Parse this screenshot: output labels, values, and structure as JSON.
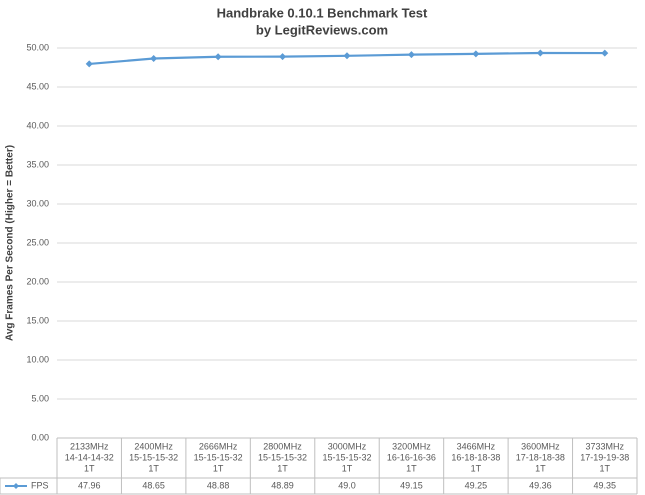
{
  "chart_data": {
    "type": "line",
    "title": "Handbrake 0.10.1 Benchmark Test",
    "subtitle": "by LegitReviews.com",
    "y_label": "Avg Frames Per Second (Higher = Better)",
    "categories": [
      [
        "2133MHz",
        "14-14-14-32",
        "1T"
      ],
      [
        "2400MHz",
        "15-15-15-32",
        "1T"
      ],
      [
        "2666MHz",
        "15-15-15-32",
        "1T"
      ],
      [
        "2800MHz",
        "15-15-15-32",
        "1T"
      ],
      [
        "3000MHz",
        "15-15-15-32",
        "1T"
      ],
      [
        "3200MHz",
        "16-16-16-36",
        "1T"
      ],
      [
        "3466MHz",
        "16-18-18-38",
        "1T"
      ],
      [
        "3600MHz",
        "17-18-18-38",
        "1T"
      ],
      [
        "3733MHz",
        "17-19-19-38",
        "1T"
      ]
    ],
    "series": [
      {
        "name": "FPS",
        "color": "#5b9bd5",
        "values": [
          47.96,
          48.65,
          48.88,
          48.89,
          49.0,
          49.15,
          49.25,
          49.36,
          49.35
        ],
        "value_labels": [
          "47.96",
          "48.65",
          "48.88",
          "48.89",
          "49.0",
          "49.15",
          "49.25",
          "49.36",
          "49.35"
        ]
      }
    ],
    "ylim": [
      0,
      50
    ],
    "yticks": [
      {
        "value": 0,
        "label": "0.00"
      },
      {
        "value": 5,
        "label": "5.00"
      },
      {
        "value": 10,
        "label": "10.00"
      },
      {
        "value": 15,
        "label": "15.00"
      },
      {
        "value": 20,
        "label": "20.00"
      },
      {
        "value": 25,
        "label": "25.00"
      },
      {
        "value": 30,
        "label": "30.00"
      },
      {
        "value": 35,
        "label": "35.00"
      },
      {
        "value": 40,
        "label": "40.00"
      },
      {
        "value": 45,
        "label": "45.00"
      },
      {
        "value": 50,
        "label": "50.00"
      }
    ],
    "grid": true
  }
}
